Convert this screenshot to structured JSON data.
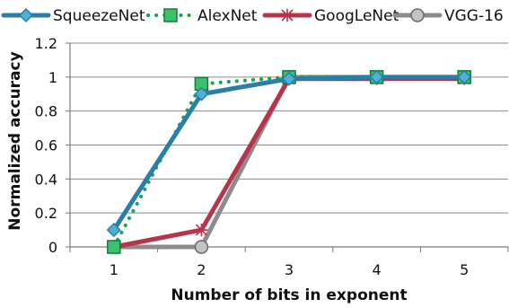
{
  "chart_data": {
    "type": "line",
    "title": "",
    "xlabel": "Number of bits in exponent",
    "ylabel": "Normalized accuracy",
    "x": [
      1,
      2,
      3,
      4,
      5
    ],
    "x_tick_labels": [
      "1",
      "2",
      "3",
      "4",
      "5"
    ],
    "y_ticks": [
      0,
      0.2,
      0.4,
      0.6,
      0.8,
      1,
      1.2
    ],
    "y_tick_labels": [
      "0",
      "0.2",
      "0.4",
      "0.6",
      "0.8",
      "1",
      "1.2"
    ],
    "ylim": [
      0,
      1.2
    ],
    "grid": "horizontal",
    "legend_position": "top",
    "series": [
      {
        "name": "SqueezeNet",
        "values": [
          0.1,
          0.9,
          0.99,
          1.0,
          1.0
        ],
        "color": "#2a7fa6",
        "marker": "diamond",
        "dash": "solid"
      },
      {
        "name": "AlexNet",
        "values": [
          0.0,
          0.96,
          1.0,
          1.0,
          1.0
        ],
        "color": "#17a350",
        "marker": "square",
        "dash": "dotted"
      },
      {
        "name": "GoogLeNet",
        "values": [
          0.0,
          0.1,
          0.99,
          0.99,
          0.99
        ],
        "color": "#b8344a",
        "marker": "star",
        "dash": "solid"
      },
      {
        "name": "VGG-16",
        "values": [
          0.0,
          0.0,
          1.0,
          1.0,
          1.0
        ],
        "color": "#8c8c8c",
        "marker": "circle",
        "dash": "solid"
      }
    ]
  }
}
